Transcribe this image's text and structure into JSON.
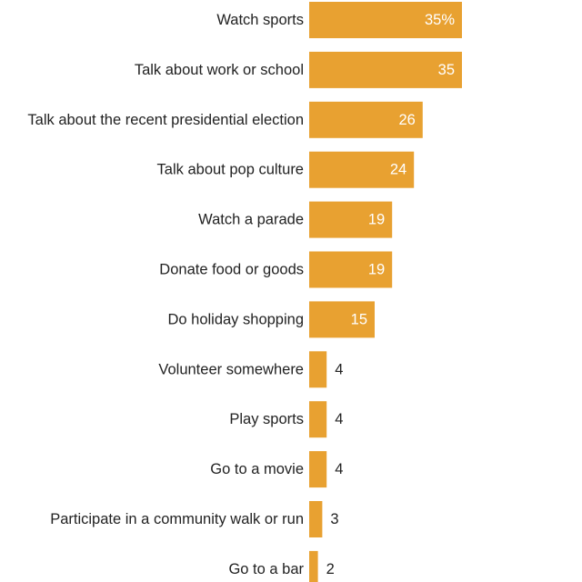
{
  "chart_data": {
    "type": "bar",
    "orientation": "horizontal",
    "title": "",
    "xlabel": "",
    "ylabel": "",
    "xlim": [
      0,
      35
    ],
    "grid": false,
    "legend": "none",
    "bar_color": "#E8A131",
    "inside_label_color": "#ffffff",
    "outside_label_color": "#222222",
    "categories": [
      "Watch sports",
      "Talk about work or school",
      "Talk about the recent presidential election",
      "Talk about pop culture",
      "Watch a parade",
      "Donate food or goods",
      "Do holiday shopping",
      "Volunteer somewhere",
      "Play sports",
      "Go to a movie",
      "Participate in a community walk or run",
      "Go to a bar"
    ],
    "values": [
      35,
      35,
      26,
      24,
      19,
      19,
      15,
      4,
      4,
      4,
      3,
      2
    ],
    "value_labels": [
      "35%",
      "35",
      "26",
      "24",
      "19",
      "19",
      "15",
      "4",
      "4",
      "4",
      "3",
      "2"
    ]
  }
}
